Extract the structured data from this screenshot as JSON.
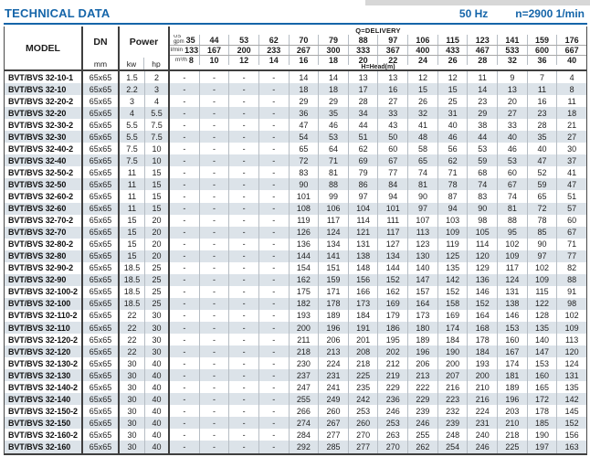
{
  "page": {
    "title": "TECHNICAL DATA",
    "frequency": "50 Hz",
    "speed": "n=2900 1/min"
  },
  "colors": {
    "accent_blue": "#1565a9",
    "row_shade": "#dce3e9",
    "border_dark": "#3f3f3f",
    "grid_light": "#b6bdc4"
  },
  "table": {
    "header": {
      "model": "MODEL",
      "dn": "DN",
      "dn_unit": "mm",
      "power": "Power",
      "kw_label": "kw",
      "hp_label": "hp",
      "delivery_label": "Q=DELIVERY",
      "head_label": "H=Head(m)",
      "units": {
        "gpm": "US gpm",
        "lmin": "l/min",
        "m3h": "m³/h"
      },
      "gpm": [
        35,
        44,
        53,
        62,
        70,
        79,
        88,
        97,
        106,
        115,
        123,
        141,
        159,
        176
      ],
      "lmin": [
        133,
        167,
        200,
        233,
        267,
        300,
        333,
        367,
        400,
        433,
        467,
        533,
        600,
        667
      ],
      "m3h": [
        8,
        10,
        12,
        14,
        16,
        18,
        20,
        22,
        24,
        26,
        28,
        32,
        36,
        40
      ]
    },
    "rows": [
      {
        "model": "BVT/BVS 32-10-1",
        "dn": "65x65",
        "kw": "1.5",
        "hp": "2",
        "head": [
          "-",
          "-",
          "-",
          "-",
          14,
          14,
          13,
          13,
          12,
          12,
          11,
          9,
          7,
          4
        ]
      },
      {
        "model": "BVT/BVS 32-10",
        "dn": "65x65",
        "kw": "2.2",
        "hp": "3",
        "head": [
          "-",
          "-",
          "-",
          "-",
          18,
          18,
          17,
          16,
          15,
          15,
          14,
          13,
          11,
          8
        ]
      },
      {
        "model": "BVT/BVS 32-20-2",
        "dn": "65x65",
        "kw": "3",
        "hp": "4",
        "head": [
          "-",
          "-",
          "-",
          "-",
          29,
          29,
          28,
          27,
          26,
          25,
          23,
          20,
          16,
          11
        ]
      },
      {
        "model": "BVT/BVS 32-20",
        "dn": "65x65",
        "kw": "4",
        "hp": "5.5",
        "head": [
          "-",
          "-",
          "-",
          "-",
          36,
          35,
          34,
          33,
          32,
          31,
          29,
          27,
          23,
          18
        ]
      },
      {
        "model": "BVT/BVS 32-30-2",
        "dn": "65x65",
        "kw": "5.5",
        "hp": "7.5",
        "head": [
          "-",
          "-",
          "-",
          "-",
          47,
          46,
          44,
          43,
          41,
          40,
          38,
          33,
          28,
          21
        ]
      },
      {
        "model": "BVT/BVS 32-30",
        "dn": "65x65",
        "kw": "5.5",
        "hp": "7.5",
        "head": [
          "-",
          "-",
          "-",
          "-",
          54,
          53,
          51,
          50,
          48,
          46,
          44,
          40,
          35,
          27
        ]
      },
      {
        "model": "BVT/BVS 32-40-2",
        "dn": "65x65",
        "kw": "7.5",
        "hp": "10",
        "head": [
          "-",
          "-",
          "-",
          "-",
          65,
          64,
          62,
          60,
          58,
          56,
          53,
          46,
          40,
          30
        ]
      },
      {
        "model": "BVT/BVS 32-40",
        "dn": "65x65",
        "kw": "7.5",
        "hp": "10",
        "head": [
          "-",
          "-",
          "-",
          "-",
          72,
          71,
          69,
          67,
          65,
          62,
          59,
          53,
          47,
          37
        ]
      },
      {
        "model": "BVT/BVS 32-50-2",
        "dn": "65x65",
        "kw": "11",
        "hp": "15",
        "head": [
          "-",
          "-",
          "-",
          "-",
          83,
          81,
          79,
          77,
          74,
          71,
          68,
          60,
          52,
          41
        ]
      },
      {
        "model": "BVT/BVS 32-50",
        "dn": "65x65",
        "kw": "11",
        "hp": "15",
        "head": [
          "-",
          "-",
          "-",
          "-",
          90,
          88,
          86,
          84,
          81,
          78,
          74,
          67,
          59,
          47
        ]
      },
      {
        "model": "BVT/BVS 32-60-2",
        "dn": "65x65",
        "kw": "11",
        "hp": "15",
        "head": [
          "-",
          "-",
          "-",
          "-",
          101,
          99,
          97,
          94,
          90,
          87,
          83,
          74,
          65,
          51
        ]
      },
      {
        "model": "BVT/BVS 32-60",
        "dn": "65x65",
        "kw": "11",
        "hp": "15",
        "head": [
          "-",
          "-",
          "-",
          "-",
          108,
          106,
          104,
          101,
          97,
          94,
          90,
          81,
          72,
          57
        ]
      },
      {
        "model": "BVT/BVS 32-70-2",
        "dn": "65x65",
        "kw": "15",
        "hp": "20",
        "head": [
          "-",
          "-",
          "-",
          "-",
          119,
          117,
          114,
          111,
          107,
          103,
          98,
          88,
          78,
          60
        ]
      },
      {
        "model": "BVT/BVS 32-70",
        "dn": "65x65",
        "kw": "15",
        "hp": "20",
        "head": [
          "-",
          "-",
          "-",
          "-",
          126,
          124,
          121,
          117,
          113,
          109,
          105,
          95,
          85,
          67
        ]
      },
      {
        "model": "BVT/BVS 32-80-2",
        "dn": "65x65",
        "kw": "15",
        "hp": "20",
        "head": [
          "-",
          "-",
          "-",
          "-",
          136,
          134,
          131,
          127,
          123,
          119,
          114,
          102,
          90,
          71
        ]
      },
      {
        "model": "BVT/BVS 32-80",
        "dn": "65x65",
        "kw": "15",
        "hp": "20",
        "head": [
          "-",
          "-",
          "-",
          "-",
          144,
          141,
          138,
          134,
          130,
          125,
          120,
          109,
          97,
          77
        ]
      },
      {
        "model": "BVT/BVS 32-90-2",
        "dn": "65x65",
        "kw": "18.5",
        "hp": "25",
        "head": [
          "-",
          "-",
          "-",
          "-",
          154,
          151,
          148,
          144,
          140,
          135,
          129,
          117,
          102,
          82
        ]
      },
      {
        "model": "BVT/BVS 32-90",
        "dn": "65x65",
        "kw": "18.5",
        "hp": "25",
        "head": [
          "-",
          "-",
          "-",
          "-",
          162,
          159,
          156,
          152,
          147,
          142,
          136,
          124,
          109,
          88
        ]
      },
      {
        "model": "BVT/BVS 32-100-2",
        "dn": "65x65",
        "kw": "18.5",
        "hp": "25",
        "head": [
          "-",
          "-",
          "-",
          "-",
          175,
          171,
          166,
          162,
          157,
          152,
          146,
          131,
          115,
          91
        ]
      },
      {
        "model": "BVT/BVS 32-100",
        "dn": "65x65",
        "kw": "18.5",
        "hp": "25",
        "head": [
          "-",
          "-",
          "-",
          "-",
          182,
          178,
          173,
          169,
          164,
          158,
          152,
          138,
          122,
          98
        ]
      },
      {
        "model": "BVT/BVS 32-110-2",
        "dn": "65x65",
        "kw": "22",
        "hp": "30",
        "head": [
          "-",
          "-",
          "-",
          "-",
          193,
          189,
          184,
          179,
          173,
          169,
          164,
          146,
          128,
          102
        ]
      },
      {
        "model": "BVT/BVS 32-110",
        "dn": "65x65",
        "kw": "22",
        "hp": "30",
        "head": [
          "-",
          "-",
          "-",
          "-",
          200,
          196,
          191,
          186,
          180,
          174,
          168,
          153,
          135,
          109
        ]
      },
      {
        "model": "BVT/BVS 32-120-2",
        "dn": "65x65",
        "kw": "22",
        "hp": "30",
        "head": [
          "-",
          "-",
          "-",
          "-",
          211,
          206,
          201,
          195,
          189,
          184,
          178,
          160,
          140,
          113
        ]
      },
      {
        "model": "BVT/BVS 32-120",
        "dn": "65x65",
        "kw": "22",
        "hp": "30",
        "head": [
          "-",
          "-",
          "-",
          "-",
          218,
          213,
          208,
          202,
          196,
          190,
          184,
          167,
          147,
          120
        ]
      },
      {
        "model": "BVT/BVS 32-130-2",
        "dn": "65x65",
        "kw": "30",
        "hp": "40",
        "head": [
          "-",
          "-",
          "-",
          "-",
          230,
          224,
          218,
          212,
          206,
          200,
          193,
          174,
          153,
          124
        ]
      },
      {
        "model": "BVT/BVS 32-130",
        "dn": "65x65",
        "kw": "30",
        "hp": "40",
        "head": [
          "-",
          "-",
          "-",
          "-",
          237,
          231,
          225,
          219,
          213,
          207,
          200,
          181,
          160,
          131
        ]
      },
      {
        "model": "BVT/BVS 32-140-2",
        "dn": "65x65",
        "kw": "30",
        "hp": "40",
        "head": [
          "-",
          "-",
          "-",
          "-",
          247,
          241,
          235,
          229,
          222,
          216,
          210,
          189,
          165,
          135
        ]
      },
      {
        "model": "BVT/BVS 32-140",
        "dn": "65x65",
        "kw": "30",
        "hp": "40",
        "head": [
          "-",
          "-",
          "-",
          "-",
          255,
          249,
          242,
          236,
          229,
          223,
          216,
          196,
          172,
          142
        ]
      },
      {
        "model": "BVT/BVS 32-150-2",
        "dn": "65x65",
        "kw": "30",
        "hp": "40",
        "head": [
          "-",
          "-",
          "-",
          "-",
          266,
          260,
          253,
          246,
          239,
          232,
          224,
          203,
          178,
          145
        ]
      },
      {
        "model": "BVT/BVS 32-150",
        "dn": "65x65",
        "kw": "30",
        "hp": "40",
        "head": [
          "-",
          "-",
          "-",
          "-",
          274,
          267,
          260,
          253,
          246,
          239,
          231,
          210,
          185,
          152
        ]
      },
      {
        "model": "BVT/BVS 32-160-2",
        "dn": "65x65",
        "kw": "30",
        "hp": "40",
        "head": [
          "-",
          "-",
          "-",
          "-",
          284,
          277,
          270,
          263,
          255,
          248,
          240,
          218,
          190,
          156
        ]
      },
      {
        "model": "BVT/BVS 32-160",
        "dn": "65x65",
        "kw": "30",
        "hp": "40",
        "head": [
          "-",
          "-",
          "-",
          "-",
          292,
          285,
          277,
          270,
          262,
          254,
          246,
          225,
          197,
          163
        ]
      }
    ]
  }
}
